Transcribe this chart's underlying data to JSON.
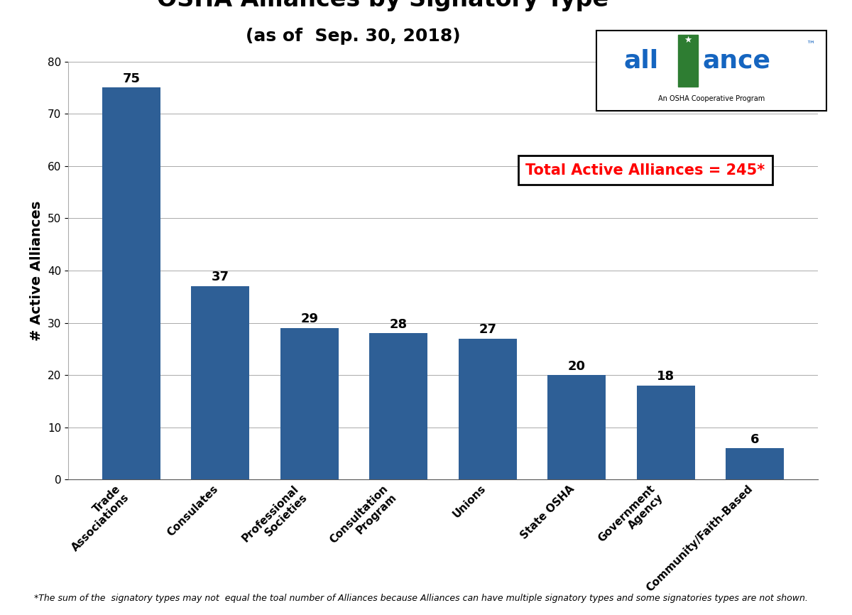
{
  "title_line1": "OSHA Alliances by Signatory Type",
  "title_line2": "(as of  Sep. 30, 2018)",
  "categories": [
    "Trade\nAssociations",
    "Consulates",
    "Professional\nSocieties",
    "Consultation\nProgram",
    "Unions",
    "State OSHA",
    "Government\nAgency",
    "Community/Faith-Based"
  ],
  "values": [
    75,
    37,
    29,
    28,
    27,
    20,
    18,
    6
  ],
  "bar_color": "#2E5F96",
  "ylabel": "# Active Alliances",
  "ylim": [
    0,
    80
  ],
  "yticks": [
    0,
    10,
    20,
    30,
    40,
    50,
    60,
    70,
    80
  ],
  "annotation_text": "Total Active Alliances = 245*",
  "annotation_color": "#FF0000",
  "footnote": "*The sum of the  signatory types may not  equal the toal number of Alliances because Alliances can have multiple signatory types and some signatories types are not shown.",
  "background_color": "#FFFFFF",
  "title_fontsize": 24,
  "subtitle_fontsize": 18,
  "ylabel_fontsize": 14,
  "bar_label_fontsize": 13,
  "annotation_fontsize": 15,
  "footnote_fontsize": 9,
  "logo_text_main": "all  ance",
  "logo_text_sub": "An OSHA Cooperative Program",
  "logo_blue": "#1565C0",
  "logo_green": "#2E7D32"
}
